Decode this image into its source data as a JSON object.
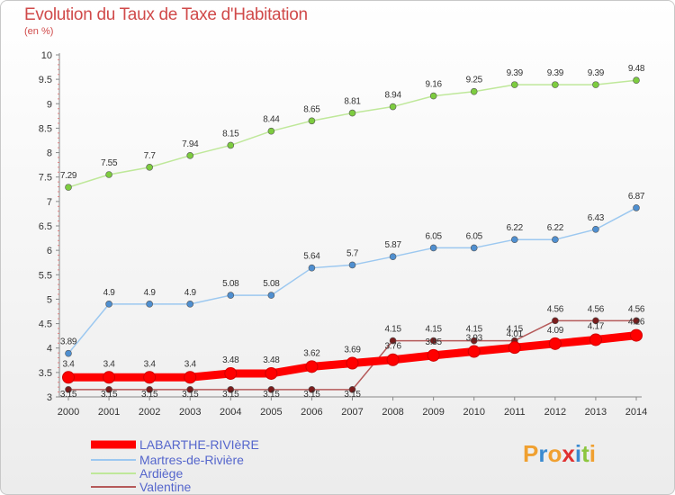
{
  "chart_data": {
    "type": "line",
    "title": "Evolution du Taux de Taxe d'Habitation",
    "subtitle": "(en %)",
    "x": [
      2000,
      2001,
      2002,
      2003,
      2004,
      2005,
      2006,
      2007,
      2008,
      2009,
      2010,
      2011,
      2012,
      2013,
      2014
    ],
    "ylim": [
      3,
      10
    ],
    "yticks": [
      3,
      3.5,
      4,
      4.5,
      5,
      5.5,
      6,
      6.5,
      7,
      7.5,
      8,
      8.5,
      9,
      9.5,
      10
    ],
    "grid": false,
    "legend_position": "bottom-left",
    "series": [
      {
        "name": "LABARTHE-RIVIèRE",
        "color": "#ff0000",
        "values": [
          3.4,
          3.4,
          3.4,
          3.4,
          3.48,
          3.48,
          3.62,
          3.69,
          3.76,
          3.85,
          3.93,
          4.01,
          4.09,
          4.17,
          4.26
        ]
      },
      {
        "name": "Martres-de-Rivière",
        "color": "#4f8fd0",
        "values": [
          3.89,
          4.9,
          4.9,
          4.9,
          5.08,
          5.08,
          5.64,
          5.7,
          5.87,
          6.05,
          6.05,
          6.22,
          6.22,
          6.43,
          6.87
        ]
      },
      {
        "name": "Ardiège",
        "color": "#7dcc3f",
        "values": [
          7.29,
          7.55,
          7.7,
          7.94,
          8.15,
          8.44,
          8.65,
          8.81,
          8.94,
          9.16,
          9.25,
          9.39,
          9.39,
          9.39,
          9.48
        ]
      },
      {
        "name": "Valentine",
        "color": "#7a1c1c",
        "values": [
          3.15,
          3.15,
          3.15,
          3.15,
          3.15,
          3.15,
          3.15,
          3.15,
          4.15,
          4.15,
          4.15,
          4.15,
          4.56,
          4.56,
          4.56
        ]
      }
    ]
  },
  "logo": {
    "letters": [
      "P",
      "r",
      "o",
      "x",
      "i",
      "t",
      "i"
    ],
    "colors": [
      "#f0a030",
      "#3a8ad0",
      "#f0a030",
      "#e03030",
      "#3a8ad0",
      "#8cc63e",
      "#f0a030"
    ]
  }
}
